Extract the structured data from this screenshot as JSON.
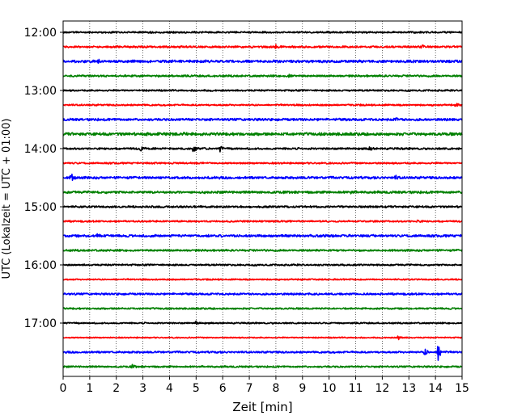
{
  "chart_data": {
    "type": "line",
    "chart_kind": "helicorder",
    "title": "",
    "xlabel": "Zeit  [min]",
    "ylabel": "UTC (Lokalzeit = UTC + 01:00)",
    "xlim": [
      0,
      15
    ],
    "x_ticks": [
      0,
      1,
      2,
      3,
      4,
      5,
      6,
      7,
      8,
      9,
      10,
      11,
      12,
      13,
      14,
      15
    ],
    "y_tick_labels": [
      "12:00",
      "13:00",
      "14:00",
      "15:00",
      "16:00",
      "17:00"
    ],
    "grid": "vertical-dotted",
    "legend": "none",
    "line_colors": [
      "#000000",
      "#ff0000",
      "#0000ff",
      "#008000"
    ],
    "trace_interval_minutes": 15,
    "traces": [
      {
        "start": "12:00",
        "color": "#000000",
        "noise": 0.7,
        "events": [
          {
            "x": 3.2,
            "amp": 0.8
          }
        ]
      },
      {
        "start": "12:15",
        "color": "#ff0000",
        "noise": 0.8,
        "events": [
          {
            "x": 8.0,
            "amp": 1.2
          },
          {
            "x": 13.5,
            "amp": 1.0
          }
        ]
      },
      {
        "start": "12:30",
        "color": "#0000ff",
        "noise": 1.1,
        "events": [
          {
            "x": 1.3,
            "amp": 1.2
          }
        ]
      },
      {
        "start": "12:45",
        "color": "#008000",
        "noise": 0.8,
        "events": [
          {
            "x": 8.5,
            "amp": 1.5
          }
        ]
      },
      {
        "start": "13:00",
        "color": "#000000",
        "noise": 0.7,
        "events": []
      },
      {
        "start": "13:15",
        "color": "#ff0000",
        "noise": 0.7,
        "events": [
          {
            "x": 14.8,
            "amp": 1.3
          }
        ]
      },
      {
        "start": "13:30",
        "color": "#0000ff",
        "noise": 1.0,
        "events": [
          {
            "x": 12.5,
            "amp": 1.0
          }
        ]
      },
      {
        "start": "13:45",
        "color": "#008000",
        "noise": 1.2,
        "events": [
          {
            "x": 4.5,
            "amp": 1.2
          }
        ]
      },
      {
        "start": "14:00",
        "color": "#000000",
        "noise": 0.8,
        "events": [
          {
            "x": 2.9,
            "amp": 2.0
          },
          {
            "x": 4.9,
            "amp": 2.5
          },
          {
            "x": 5.9,
            "amp": 1.8
          },
          {
            "x": 11.5,
            "amp": 1.5
          }
        ]
      },
      {
        "start": "14:15",
        "color": "#ff0000",
        "noise": 0.7,
        "events": []
      },
      {
        "start": "14:30",
        "color": "#0000ff",
        "noise": 1.0,
        "events": [
          {
            "x": 0.3,
            "amp": 3.0
          },
          {
            "x": 12.5,
            "amp": 1.2
          }
        ]
      },
      {
        "start": "14:45",
        "color": "#008000",
        "noise": 1.0,
        "events": [
          {
            "x": 10.8,
            "amp": 1.2
          }
        ]
      },
      {
        "start": "15:00",
        "color": "#000000",
        "noise": 0.8,
        "events": []
      },
      {
        "start": "15:15",
        "color": "#ff0000",
        "noise": 0.7,
        "events": [
          {
            "x": 13.3,
            "amp": 1.2
          }
        ]
      },
      {
        "start": "15:30",
        "color": "#0000ff",
        "noise": 1.0,
        "events": [
          {
            "x": 1.3,
            "amp": 1.3
          }
        ]
      },
      {
        "start": "15:45",
        "color": "#008000",
        "noise": 0.8,
        "events": []
      },
      {
        "start": "16:00",
        "color": "#000000",
        "noise": 0.7,
        "events": []
      },
      {
        "start": "16:15",
        "color": "#ff0000",
        "noise": 0.6,
        "events": []
      },
      {
        "start": "16:30",
        "color": "#0000ff",
        "noise": 0.8,
        "events": []
      },
      {
        "start": "16:45",
        "color": "#008000",
        "noise": 0.7,
        "events": []
      },
      {
        "start": "17:00",
        "color": "#000000",
        "noise": 0.6,
        "events": [
          {
            "x": 5.0,
            "amp": 1.2
          }
        ]
      },
      {
        "start": "17:15",
        "color": "#ff0000",
        "noise": 0.5,
        "events": [
          {
            "x": 12.6,
            "amp": 1.5
          }
        ]
      },
      {
        "start": "17:30",
        "color": "#0000ff",
        "noise": 0.8,
        "events": [
          {
            "x": 13.6,
            "amp": 2.5
          },
          {
            "x": 14.1,
            "amp": 8.0
          }
        ]
      },
      {
        "start": "17:45",
        "color": "#008000",
        "noise": 0.7,
        "events": [
          {
            "x": 2.6,
            "amp": 1.2
          }
        ]
      }
    ]
  }
}
